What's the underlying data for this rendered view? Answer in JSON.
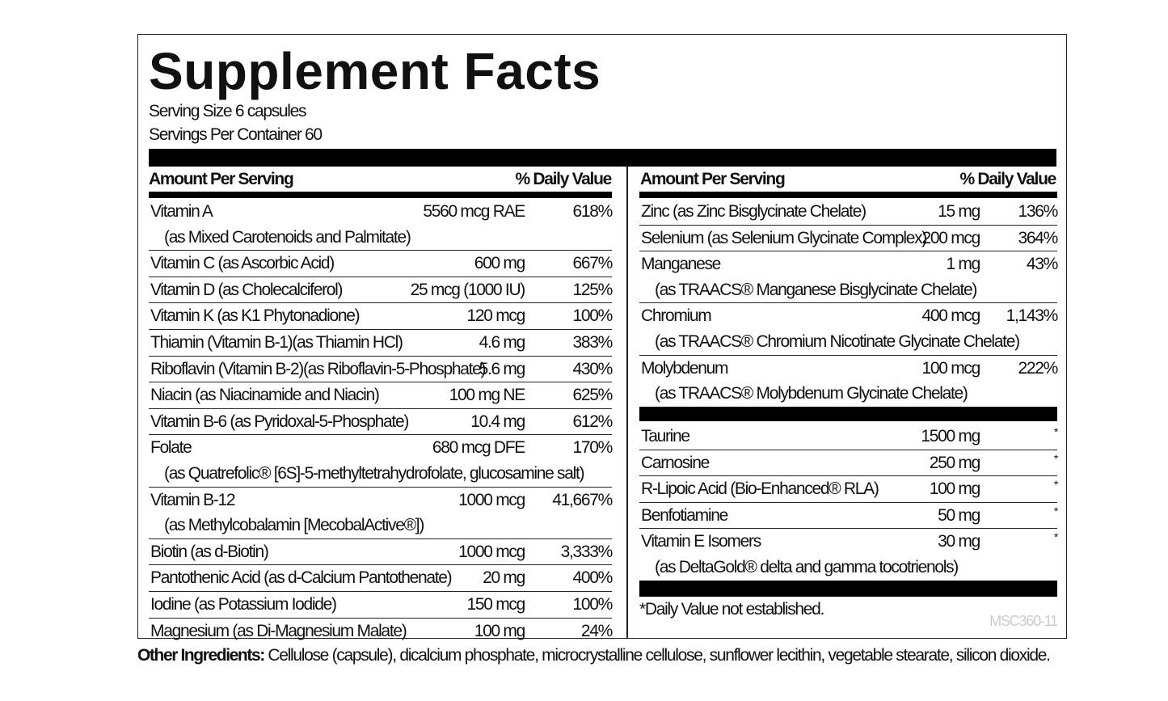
{
  "title": "Supplement Facts",
  "serving_size": "Serving Size 6 capsules",
  "servings_per_container": "Servings Per Container 60",
  "header": {
    "amount": "Amount Per Serving",
    "dv": "% Daily Value"
  },
  "left_items": [
    {
      "name": "Vitamin A",
      "amount": "5560 mcg RAE",
      "dv": "618%",
      "sub": "(as Mixed Carotenoids and Palmitate)"
    },
    {
      "name": "Vitamin C (as Ascorbic Acid)",
      "amount": "600 mg",
      "dv": "667%"
    },
    {
      "name": "Vitamin D (as Cholecalciferol)",
      "amount": "25 mcg (1000 IU)",
      "dv": "125%"
    },
    {
      "name": "Vitamin K (as K1 Phytonadione)",
      "amount": "120 mcg",
      "dv": "100%"
    },
    {
      "name": "Thiamin (Vitamin B-1)(as Thiamin HCl)",
      "amount": "4.6 mg",
      "dv": "383%"
    },
    {
      "name": "Riboflavin (Vitamin B-2)(as Riboflavin-5-Phosphate)",
      "amount": "5.6 mg",
      "dv": "430%"
    },
    {
      "name": "Niacin (as Niacinamide and Niacin)",
      "amount": "100 mg NE",
      "dv": "625%"
    },
    {
      "name": "Vitamin B-6 (as Pyridoxal-5-Phosphate)",
      "amount": "10.4 mg",
      "dv": "612%"
    },
    {
      "name": "Folate",
      "amount": "680 mcg DFE",
      "dv": "170%",
      "sub": "(as Quatrefolic® [6S]-5-methyltetrahydrofolate, glucosamine salt)"
    },
    {
      "name": "Vitamin B-12",
      "amount": "1000 mcg",
      "dv": "41,667%",
      "sub": "(as Methylcobalamin [MecobalActive®])"
    },
    {
      "name": "Biotin (as d-Biotin)",
      "amount": "1000 mcg",
      "dv": "3,333%"
    },
    {
      "name": "Pantothenic Acid (as d-Calcium Pantothenate)",
      "amount": "20 mg",
      "dv": "400%"
    },
    {
      "name": "Iodine (as Potassium Iodide)",
      "amount": "150 mcg",
      "dv": "100%"
    },
    {
      "name": "Magnesium (as Di-Magnesium Malate)",
      "amount": "100 mg",
      "dv": "24%"
    }
  ],
  "right_items": [
    {
      "name": "Zinc (as Zinc Bisglycinate Chelate)",
      "amount": "15 mg",
      "dv": "136%"
    },
    {
      "name": "Selenium (as Selenium Glycinate Complex)",
      "amount": "200 mcg",
      "dv": "364%"
    },
    {
      "name": "Manganese",
      "amount": "1 mg",
      "dv": "43%",
      "sub": "(as TRAACS® Manganese Bisglycinate Chelate)"
    },
    {
      "name": "Chromium",
      "amount": "400 mcg",
      "dv": "1,143%",
      "sub": "(as TRAACS® Chromium Nicotinate Glycinate Chelate)"
    },
    {
      "name": "Molybdenum",
      "amount": "100 mcg",
      "dv": "222%",
      "sub": "(as TRAACS® Molybdenum Glycinate Chelate)"
    }
  ],
  "right_items2": [
    {
      "name": "Taurine",
      "amount": "1500 mg",
      "dv": "*"
    },
    {
      "name": "Carnosine",
      "amount": "250 mg",
      "dv": "*"
    },
    {
      "name": "R-Lipoic Acid (Bio-Enhanced® RLA)",
      "amount": "100 mg",
      "dv": "*"
    },
    {
      "name": "Benfotiamine",
      "amount": "50 mg",
      "dv": "*"
    },
    {
      "name": "Vitamin E Isomers",
      "amount": "30 mg",
      "dv": "*",
      "sub": "(as DeltaGold® delta and gamma tocotrienols)"
    }
  ],
  "footnote": "*Daily Value not established.",
  "product_code": "MSC360-11",
  "other_ingredients": {
    "label": "Other Ingredients:",
    "text": " Cellulose (capsule), dicalcium phosphate, microcrystalline cellulose, sunflower lecithin, vegetable stearate, silicon dioxide."
  }
}
